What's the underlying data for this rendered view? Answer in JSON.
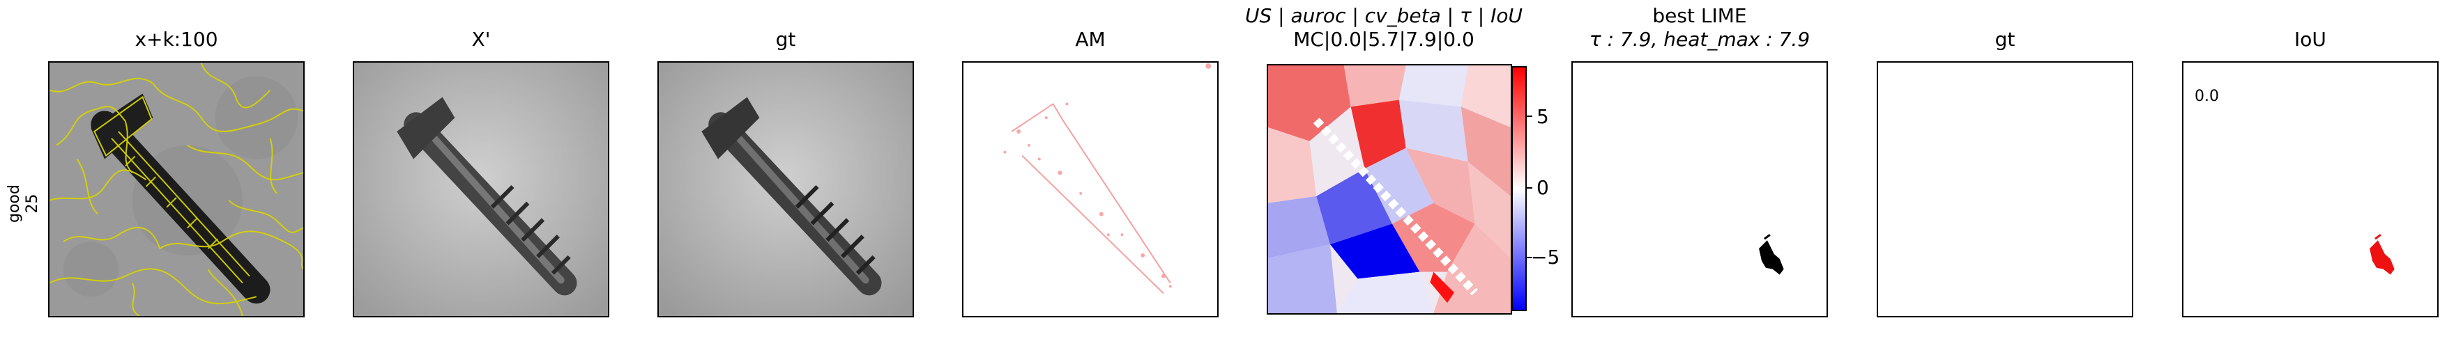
{
  "row": {
    "label_line1": "good",
    "label_line2": "25"
  },
  "panels": {
    "p1": {
      "title": "x+k:100"
    },
    "p2": {
      "title": "X'"
    },
    "p3": {
      "title": "gt"
    },
    "p4": {
      "title": "AM"
    },
    "p5": {
      "title_line1": "US | auroc | cv_beta | τ | IoU",
      "title_line2": "MC|0.0|5.7|7.9|0.0"
    },
    "p6": {
      "title_line1": "best LIME",
      "title_line2": "τ : 7.9, heat_max : 7.9"
    },
    "p7": {
      "title": "gt"
    },
    "p8": {
      "title": "IoU",
      "value": "0.0"
    }
  },
  "colorbar": {
    "ticks": [
      "5",
      "0",
      "−5"
    ],
    "colors": {
      "high": "#ff0000",
      "mid": "#ffffff",
      "low": "#0000ff"
    }
  }
}
